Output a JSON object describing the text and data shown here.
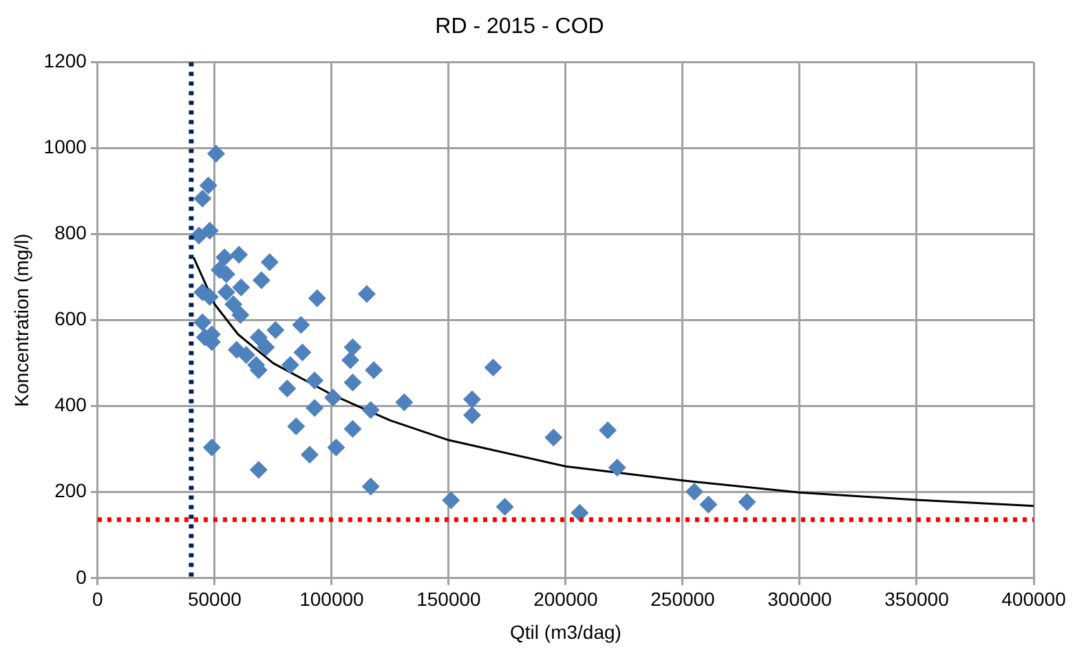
{
  "chart_data": {
    "type": "scatter",
    "title": "RD - 2015 - COD",
    "xlabel": "Qtil (m3/dag)",
    "ylabel": "Koncentration (mg/l)",
    "xlim": [
      0,
      400000
    ],
    "xticks": [
      0,
      50000,
      100000,
      150000,
      200000,
      250000,
      300000,
      350000,
      400000
    ],
    "ylim": [
      0,
      1200
    ],
    "yticks": [
      0,
      200,
      400,
      600,
      800,
      1000,
      1200
    ],
    "grid": true,
    "legend": false,
    "marker": "diamond",
    "series": [
      {
        "type": "scatter",
        "color": "#4f81bd",
        "x": [
          50600,
          47300,
          44800,
          47900,
          43300,
          54200,
          60400,
          73500,
          52100,
          55000,
          70000,
          61300,
          44800,
          55000,
          47900,
          93800,
          115000,
          58000,
          61000,
          44800,
          48800,
          45800,
          48800,
          76000,
          86900,
          68800,
          59400,
          71900,
          63500,
          87500,
          82300,
          67700,
          109000,
          108000,
          118000,
          68800,
          92700,
          109000,
          81000,
          100600,
          92700,
          116700,
          131000,
          109000,
          84800,
          48800,
          90600,
          101900,
          68800,
          116700,
          169000,
          160000,
          160000,
          194800,
          218000,
          222000,
          151000,
          174000,
          206000,
          255000,
          261000,
          277500
        ],
        "values": [
          987,
          913,
          883,
          808,
          797,
          746,
          752,
          735,
          717,
          707,
          693,
          676,
          665,
          665,
          654,
          651,
          661,
          637,
          612,
          595,
          567,
          560,
          549,
          577,
          589,
          560,
          531,
          537,
          519,
          525,
          496,
          496,
          537,
          507,
          484,
          484,
          460,
          455,
          441,
          420,
          396,
          391,
          409,
          347,
          353,
          304,
          287,
          304,
          252,
          213,
          490,
          416,
          379,
          327,
          344,
          257,
          181,
          166,
          152,
          201,
          171,
          177
        ]
      },
      {
        "type": "line",
        "color": "#000000",
        "marker": "none",
        "x": [
          41000,
          50000,
          60000,
          75000,
          100000,
          125000,
          150000,
          200000,
          250000,
          300000,
          350000,
          400000
        ],
        "values": [
          746,
          637,
          567,
          500,
          427,
          367,
          321,
          260,
          227,
          199,
          182,
          168
        ]
      }
    ],
    "ref_lines": [
      {
        "axis": "y",
        "value": 136,
        "color": "#ff0000",
        "line_style": "dotted"
      },
      {
        "axis": "x",
        "value": 40000,
        "color": "#002060",
        "line_style": "dotted"
      }
    ]
  }
}
